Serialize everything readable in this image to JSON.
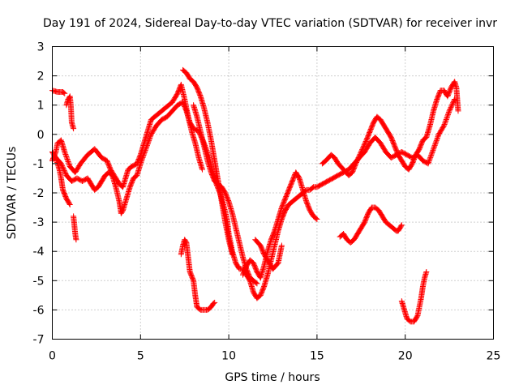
{
  "chart_data": {
    "type": "scatter",
    "title": "Day 191 of 2024, Sidereal Day-to-day VTEC variation (SDTVAR) for receiver invr",
    "xlabel": "GPS time / hours",
    "ylabel": "SDTVAR / TECUs",
    "xlim": [
      0,
      25
    ],
    "ylim": [
      -7,
      3
    ],
    "xticks": [
      0,
      5,
      10,
      15,
      20,
      25
    ],
    "yticks": [
      -7,
      -6,
      -5,
      -4,
      -3,
      -2,
      -1,
      0,
      1,
      2,
      3
    ],
    "xtick_labels": [
      "0",
      "5",
      "10",
      "15",
      "20",
      "25"
    ],
    "ytick_labels": [
      "-7",
      "-6",
      "-5",
      "-4",
      "-3",
      "-2",
      "-1",
      "0",
      "1",
      "2",
      "3"
    ],
    "grid": true,
    "marker": "+",
    "color": "#ff0000",
    "series": [
      {
        "name": "s1",
        "points": [
          [
            0.0,
            1.5
          ],
          [
            0.3,
            1.45
          ],
          [
            0.6,
            1.45
          ],
          [
            0.7,
            1.4
          ]
        ]
      },
      {
        "name": "s2",
        "points": [
          [
            0.8,
            1.0
          ],
          [
            0.9,
            1.2
          ],
          [
            1.0,
            1.3
          ],
          [
            1.05,
            1.0
          ],
          [
            1.1,
            0.4
          ],
          [
            1.2,
            0.2
          ]
        ]
      },
      {
        "name": "s3",
        "points": [
          [
            1.2,
            -2.8
          ],
          [
            1.25,
            -3.1
          ],
          [
            1.3,
            -3.4
          ],
          [
            1.35,
            -3.6
          ]
        ]
      },
      {
        "name": "s4",
        "points": [
          [
            0.0,
            -0.6
          ],
          [
            0.2,
            -0.8
          ],
          [
            0.4,
            -1.2
          ],
          [
            0.5,
            -1.5
          ],
          [
            0.6,
            -1.9
          ],
          [
            0.8,
            -2.2
          ],
          [
            1.0,
            -2.4
          ]
        ]
      },
      {
        "name": "s5",
        "points": [
          [
            0.0,
            -0.9
          ],
          [
            0.2,
            -0.6
          ],
          [
            0.3,
            -0.3
          ],
          [
            0.5,
            -0.2
          ],
          [
            0.7,
            -0.6
          ],
          [
            1.0,
            -1.1
          ],
          [
            1.3,
            -1.3
          ],
          [
            1.6,
            -1.0
          ],
          [
            2.0,
            -0.7
          ],
          [
            2.4,
            -0.5
          ],
          [
            2.8,
            -0.8
          ],
          [
            3.1,
            -0.9
          ],
          [
            3.3,
            -1.2
          ],
          [
            3.6,
            -1.5
          ],
          [
            3.8,
            -1.7
          ],
          [
            4.0,
            -1.8
          ],
          [
            4.3,
            -1.2
          ],
          [
            4.5,
            -1.1
          ],
          [
            4.8,
            -1.0
          ],
          [
            5.0,
            -0.7
          ],
          [
            5.3,
            -0.1
          ],
          [
            5.6,
            0.5
          ],
          [
            6.0,
            0.7
          ],
          [
            6.4,
            0.9
          ],
          [
            6.8,
            1.1
          ],
          [
            7.1,
            1.4
          ],
          [
            7.3,
            1.7
          ],
          [
            7.5,
            1.2
          ],
          [
            7.7,
            0.6
          ],
          [
            7.9,
            0.1
          ],
          [
            8.1,
            -0.3
          ],
          [
            8.3,
            -0.8
          ],
          [
            8.5,
            -1.2
          ]
        ]
      },
      {
        "name": "s6",
        "points": [
          [
            0.2,
            -0.8
          ],
          [
            0.5,
            -1.0
          ],
          [
            0.8,
            -1.4
          ],
          [
            1.1,
            -1.6
          ],
          [
            1.4,
            -1.5
          ],
          [
            1.7,
            -1.6
          ],
          [
            2.0,
            -1.5
          ],
          [
            2.2,
            -1.7
          ],
          [
            2.4,
            -1.9
          ],
          [
            2.6,
            -1.8
          ],
          [
            2.8,
            -1.6
          ],
          [
            3.0,
            -1.4
          ],
          [
            3.2,
            -1.3
          ],
          [
            3.4,
            -1.4
          ],
          [
            3.6,
            -1.8
          ],
          [
            3.8,
            -2.3
          ],
          [
            3.9,
            -2.7
          ],
          [
            4.0,
            -2.6
          ],
          [
            4.2,
            -2.2
          ],
          [
            4.4,
            -1.8
          ],
          [
            4.6,
            -1.5
          ],
          [
            4.8,
            -1.4
          ],
          [
            5.0,
            -1.0
          ],
          [
            5.3,
            -0.5
          ],
          [
            5.6,
            0.0
          ],
          [
            5.9,
            0.3
          ],
          [
            6.2,
            0.5
          ],
          [
            6.5,
            0.6
          ],
          [
            6.8,
            0.8
          ],
          [
            7.1,
            1.0
          ],
          [
            7.4,
            1.1
          ],
          [
            7.6,
            0.8
          ],
          [
            7.8,
            0.4
          ],
          [
            8.0,
            0.2
          ],
          [
            8.3,
            0.1
          ],
          [
            8.6,
            -0.3
          ],
          [
            8.9,
            -0.8
          ],
          [
            9.1,
            -1.3
          ],
          [
            9.3,
            -1.7
          ],
          [
            9.5,
            -2.0
          ],
          [
            9.7,
            -2.4
          ],
          [
            9.9,
            -2.9
          ],
          [
            10.0,
            -3.4
          ],
          [
            10.2,
            -4.0
          ],
          [
            10.4,
            -4.4
          ],
          [
            10.6,
            -4.6
          ],
          [
            10.8,
            -4.6
          ],
          [
            11.0,
            -4.8
          ],
          [
            11.2,
            -5.0
          ],
          [
            11.4,
            -5.4
          ],
          [
            11.6,
            -5.6
          ],
          [
            11.8,
            -5.5
          ],
          [
            12.0,
            -5.2
          ],
          [
            12.2,
            -4.8
          ],
          [
            12.4,
            -4.3
          ],
          [
            12.6,
            -3.8
          ],
          [
            12.8,
            -3.3
          ],
          [
            13.0,
            -2.9
          ],
          [
            13.2,
            -2.6
          ],
          [
            13.4,
            -2.4
          ],
          [
            13.6,
            -2.3
          ],
          [
            13.8,
            -2.2
          ],
          [
            14.0,
            -2.1
          ],
          [
            14.2,
            -2.0
          ],
          [
            14.4,
            -1.9
          ],
          [
            14.6,
            -1.9
          ],
          [
            14.8,
            -1.8
          ],
          [
            15.0,
            -1.8
          ],
          [
            15.3,
            -1.7
          ],
          [
            15.6,
            -1.6
          ],
          [
            15.9,
            -1.5
          ],
          [
            16.2,
            -1.4
          ],
          [
            16.5,
            -1.3
          ],
          [
            16.8,
            -1.2
          ],
          [
            17.1,
            -1.0
          ],
          [
            17.4,
            -0.8
          ],
          [
            17.7,
            -0.6
          ],
          [
            18.0,
            -0.3
          ],
          [
            18.3,
            -0.1
          ],
          [
            18.6,
            -0.3
          ],
          [
            18.9,
            -0.6
          ],
          [
            19.2,
            -0.8
          ],
          [
            19.5,
            -0.7
          ],
          [
            19.8,
            -0.6
          ],
          [
            20.1,
            -0.7
          ],
          [
            20.4,
            -0.8
          ],
          [
            20.7,
            -0.7
          ],
          [
            21.0,
            -0.9
          ],
          [
            21.3,
            -1.0
          ],
          [
            21.6,
            -0.5
          ],
          [
            21.9,
            0.0
          ],
          [
            22.2,
            0.3
          ],
          [
            22.5,
            0.8
          ],
          [
            22.8,
            1.2
          ]
        ]
      },
      {
        "name": "s7",
        "points": [
          [
            7.4,
            2.2
          ],
          [
            7.6,
            2.1
          ],
          [
            7.8,
            1.9
          ],
          [
            8.0,
            1.8
          ],
          [
            8.2,
            1.6
          ],
          [
            8.4,
            1.3
          ],
          [
            8.6,
            0.9
          ],
          [
            8.8,
            0.4
          ],
          [
            9.0,
            -0.2
          ],
          [
            9.2,
            -0.9
          ],
          [
            9.4,
            -1.6
          ],
          [
            9.6,
            -2.3
          ],
          [
            9.8,
            -3.0
          ],
          [
            10.0,
            -3.6
          ],
          [
            10.2,
            -4.1
          ]
        ]
      },
      {
        "name": "s8",
        "points": [
          [
            8.0,
            1.0
          ],
          [
            8.2,
            0.6
          ],
          [
            8.4,
            0.1
          ],
          [
            8.6,
            -0.4
          ],
          [
            8.8,
            -0.9
          ],
          [
            9.0,
            -1.3
          ],
          [
            9.2,
            -1.6
          ],
          [
            9.4,
            -1.7
          ],
          [
            9.6,
            -1.8
          ],
          [
            9.8,
            -2.0
          ],
          [
            10.0,
            -2.3
          ],
          [
            10.2,
            -2.7
          ],
          [
            10.4,
            -3.2
          ],
          [
            10.6,
            -3.7
          ],
          [
            10.8,
            -4.2
          ],
          [
            11.0,
            -4.6
          ],
          [
            11.2,
            -4.9
          ],
          [
            11.4,
            -5.0
          ],
          [
            11.6,
            -5.1
          ]
        ]
      },
      {
        "name": "s9",
        "points": [
          [
            7.3,
            -4.1
          ],
          [
            7.4,
            -3.8
          ],
          [
            7.5,
            -3.6
          ],
          [
            7.6,
            -3.7
          ],
          [
            7.7,
            -4.2
          ],
          [
            7.8,
            -4.7
          ],
          [
            8.0,
            -5.0
          ],
          [
            8.1,
            -5.5
          ],
          [
            8.2,
            -5.9
          ],
          [
            8.4,
            -6.0
          ],
          [
            8.6,
            -6.0
          ],
          [
            8.8,
            -6.0
          ],
          [
            9.0,
            -5.9
          ],
          [
            9.1,
            -5.8
          ],
          [
            9.2,
            -5.75
          ]
        ]
      },
      {
        "name": "s10",
        "points": [
          [
            10.8,
            -4.8
          ],
          [
            11.0,
            -4.5
          ],
          [
            11.2,
            -4.3
          ],
          [
            11.4,
            -4.4
          ],
          [
            11.6,
            -4.7
          ],
          [
            11.8,
            -4.9
          ],
          [
            12.0,
            -4.5
          ],
          [
            12.2,
            -4.0
          ],
          [
            12.4,
            -3.6
          ],
          [
            12.6,
            -3.3
          ],
          [
            12.8,
            -2.9
          ],
          [
            13.0,
            -2.5
          ],
          [
            13.2,
            -2.2
          ],
          [
            13.4,
            -1.9
          ],
          [
            13.6,
            -1.6
          ],
          [
            13.8,
            -1.3
          ],
          [
            14.0,
            -1.5
          ],
          [
            14.2,
            -1.9
          ],
          [
            14.4,
            -2.3
          ],
          [
            14.6,
            -2.6
          ],
          [
            14.8,
            -2.8
          ],
          [
            15.0,
            -2.9
          ]
        ]
      },
      {
        "name": "s11",
        "points": [
          [
            11.5,
            -3.6
          ],
          [
            11.8,
            -3.8
          ],
          [
            12.0,
            -4.1
          ],
          [
            12.3,
            -4.4
          ],
          [
            12.5,
            -4.6
          ],
          [
            12.8,
            -4.4
          ],
          [
            13.0,
            -3.8
          ]
        ]
      },
      {
        "name": "s12",
        "points": [
          [
            15.3,
            -1.0
          ],
          [
            15.5,
            -0.9
          ],
          [
            15.8,
            -0.7
          ],
          [
            16.0,
            -0.8
          ],
          [
            16.2,
            -1.0
          ],
          [
            16.5,
            -1.2
          ],
          [
            16.8,
            -1.4
          ],
          [
            17.0,
            -1.3
          ],
          [
            17.2,
            -1.0
          ],
          [
            17.5,
            -0.6
          ],
          [
            17.8,
            -0.2
          ],
          [
            18.0,
            0.1
          ],
          [
            18.2,
            0.4
          ],
          [
            18.4,
            0.6
          ],
          [
            18.6,
            0.5
          ],
          [
            18.8,
            0.3
          ],
          [
            19.0,
            0.1
          ],
          [
            19.2,
            -0.1
          ],
          [
            19.4,
            -0.4
          ],
          [
            19.6,
            -0.7
          ],
          [
            19.8,
            -0.9
          ],
          [
            20.0,
            -1.1
          ],
          [
            20.2,
            -1.2
          ],
          [
            20.4,
            -1.0
          ],
          [
            20.6,
            -0.7
          ],
          [
            20.8,
            -0.5
          ],
          [
            21.0,
            -0.2
          ],
          [
            21.2,
            -0.1
          ],
          [
            21.4,
            0.3
          ],
          [
            21.6,
            0.8
          ],
          [
            21.8,
            1.2
          ],
          [
            22.0,
            1.5
          ],
          [
            22.2,
            1.5
          ],
          [
            22.4,
            1.3
          ],
          [
            22.6,
            1.6
          ],
          [
            22.8,
            1.8
          ],
          [
            22.9,
            1.6
          ],
          [
            23.0,
            0.8
          ]
        ]
      },
      {
        "name": "s13",
        "points": [
          [
            16.3,
            -3.5
          ],
          [
            16.5,
            -3.4
          ],
          [
            16.7,
            -3.6
          ],
          [
            16.9,
            -3.7
          ],
          [
            17.1,
            -3.6
          ],
          [
            17.3,
            -3.4
          ],
          [
            17.5,
            -3.2
          ],
          [
            17.7,
            -3.0
          ],
          [
            17.9,
            -2.7
          ],
          [
            18.1,
            -2.5
          ],
          [
            18.3,
            -2.5
          ],
          [
            18.5,
            -2.6
          ],
          [
            18.7,
            -2.8
          ],
          [
            18.9,
            -3.0
          ],
          [
            19.1,
            -3.1
          ],
          [
            19.3,
            -3.2
          ],
          [
            19.5,
            -3.3
          ],
          [
            19.6,
            -3.3
          ],
          [
            19.7,
            -3.2
          ],
          [
            19.8,
            -3.1
          ]
        ]
      },
      {
        "name": "s14",
        "points": [
          [
            19.8,
            -5.7
          ],
          [
            19.9,
            -5.9
          ],
          [
            20.0,
            -6.1
          ],
          [
            20.1,
            -6.3
          ],
          [
            20.3,
            -6.4
          ],
          [
            20.5,
            -6.4
          ],
          [
            20.7,
            -6.2
          ],
          [
            20.8,
            -5.9
          ],
          [
            20.9,
            -5.6
          ],
          [
            21.0,
            -5.2
          ],
          [
            21.1,
            -4.9
          ],
          [
            21.2,
            -4.7
          ]
        ]
      }
    ]
  }
}
